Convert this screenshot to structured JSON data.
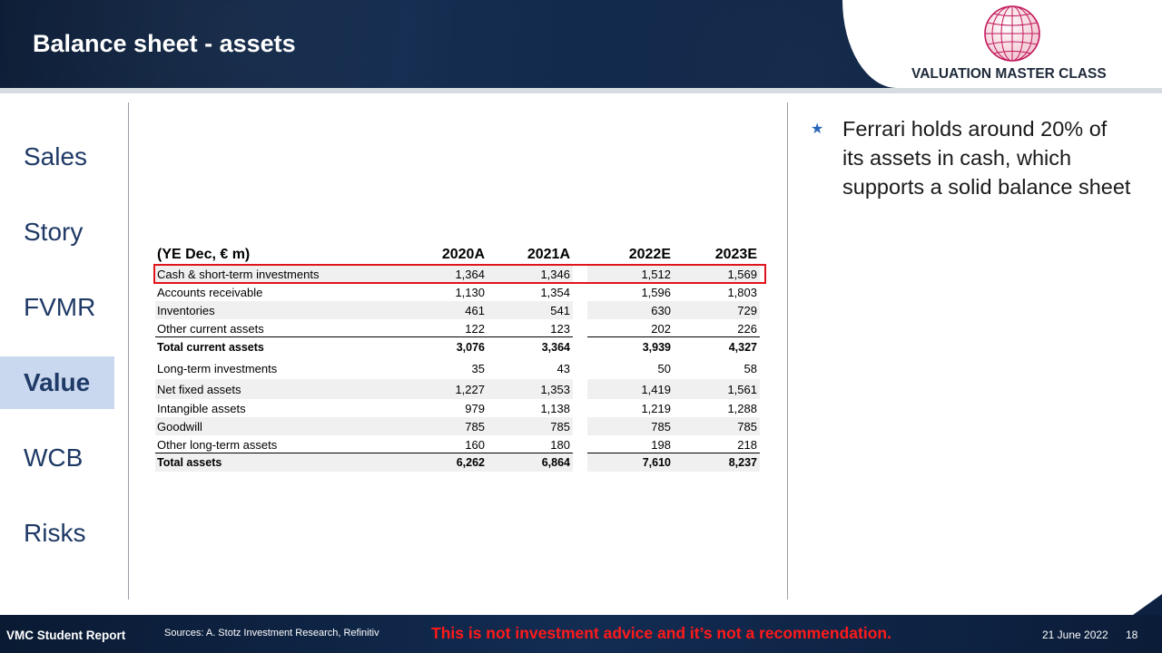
{
  "header": {
    "title": "Balance sheet - assets",
    "logo_text": "VALUATION MASTER CLASS"
  },
  "sidebar": {
    "items": [
      {
        "label": "Sales",
        "active": false
      },
      {
        "label": "Story",
        "active": false
      },
      {
        "label": "FVMR",
        "active": false
      },
      {
        "label": "Value",
        "active": true
      },
      {
        "label": "WCB",
        "active": false
      },
      {
        "label": "Risks",
        "active": false
      }
    ]
  },
  "table": {
    "header": {
      "label": "(YE Dec, € m)",
      "cols": [
        "2020A",
        "2021A",
        "2022E",
        "2023E"
      ]
    },
    "rows": [
      {
        "label": "Cash & short-term investments",
        "values": [
          "1,364",
          "1,346",
          "1,512",
          "1,569"
        ]
      },
      {
        "label": "Accounts receivable",
        "values": [
          "1,130",
          "1,354",
          "1,596",
          "1,803"
        ]
      },
      {
        "label": "Inventories",
        "values": [
          "461",
          "541",
          "630",
          "729"
        ]
      },
      {
        "label": "Other current assets",
        "values": [
          "122",
          "123",
          "202",
          "226"
        ]
      },
      {
        "label": "Total current assets",
        "values": [
          "3,076",
          "3,364",
          "3,939",
          "4,327"
        ]
      },
      {
        "label": "Long-term investments",
        "values": [
          "35",
          "43",
          "50",
          "58"
        ]
      },
      {
        "label": "Net fixed assets",
        "values": [
          "1,227",
          "1,353",
          "1,419",
          "1,561"
        ]
      },
      {
        "label": "Intangible assets",
        "values": [
          "979",
          "1,138",
          "1,219",
          "1,288"
        ]
      },
      {
        "label": "Goodwill",
        "values": [
          "785",
          "785",
          "785",
          "785"
        ]
      },
      {
        "label": "Other long-term assets",
        "values": [
          "160",
          "180",
          "198",
          "218"
        ]
      },
      {
        "label": "Total assets",
        "values": [
          "6,262",
          "6,864",
          "7,610",
          "8,237"
        ]
      }
    ]
  },
  "note": {
    "bullet_icon": "star-icon",
    "text": "Ferrari holds around 20% of its assets in cash, which supports a solid balance sheet"
  },
  "footer": {
    "report": "VMC Student Report",
    "sources": "Sources: A. Stotz Investment Research, Refinitiv",
    "disclaimer": "This is not investment advice and it’s not a recommendation.",
    "date": "21 June 2022",
    "page": "18"
  },
  "colors": {
    "navy": "#0e2444",
    "accent_blue": "#2a66b8",
    "active_tab_bg": "#c9d8ee",
    "highlight_red": "#e0141c",
    "disclaimer_red": "#ff1a1a"
  }
}
